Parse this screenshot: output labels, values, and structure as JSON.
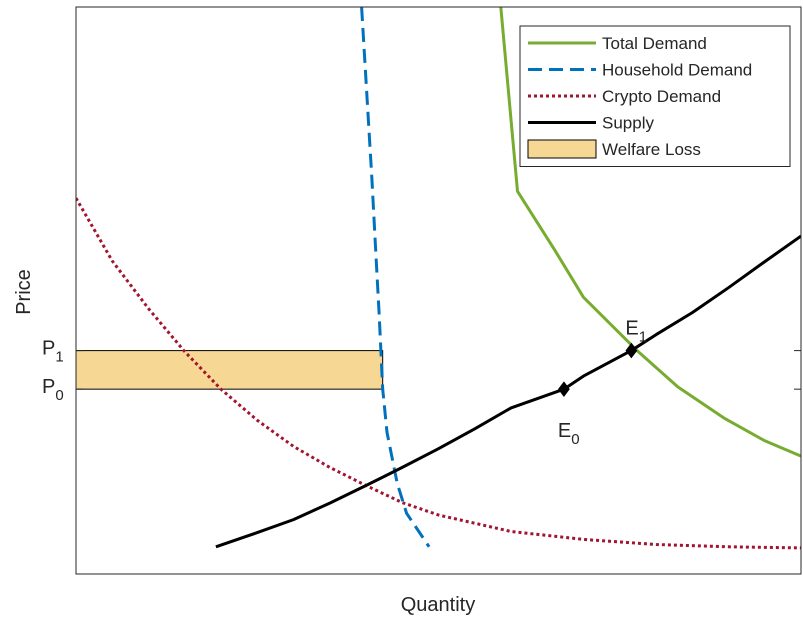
{
  "chart_data": {
    "type": "line",
    "title": "",
    "xlabel": "Quantity",
    "ylabel": "Price",
    "xlim": [
      0,
      100
    ],
    "ylim": [
      0,
      100
    ],
    "xticks": [],
    "yticks": [
      {
        "value": 32.6,
        "main": "P",
        "sub": "0"
      },
      {
        "value": 39.4,
        "main": "P",
        "sub": "1"
      }
    ],
    "grid": false,
    "legend": {
      "position": "top-right"
    },
    "series": [
      {
        "name": "Total Demand",
        "color": "#77AC30",
        "style": "solid",
        "points": [
          [
            58.6,
            100
          ],
          [
            60.9,
            67.5
          ],
          [
            66,
            57.2
          ],
          [
            70,
            48.8
          ],
          [
            77.4,
            39.4
          ],
          [
            83,
            33
          ],
          [
            89.5,
            27.4
          ],
          [
            95,
            23.5
          ],
          [
            100,
            20.8
          ]
        ]
      },
      {
        "name": "Household Demand",
        "color": "#0072BD",
        "style": "dashed",
        "points": [
          [
            39.4,
            100
          ],
          [
            40.1,
            85
          ],
          [
            40.8,
            70
          ],
          [
            41.3,
            58
          ],
          [
            41.8,
            46
          ],
          [
            42.3,
            32.6
          ],
          [
            42.9,
            25
          ],
          [
            44.3,
            16
          ],
          [
            45.6,
            10.7
          ],
          [
            48.7,
            4.8
          ]
        ]
      },
      {
        "name": "Crypto Demand",
        "color": "#A2142F",
        "style": "dotted",
        "points": [
          [
            0,
            66.3
          ],
          [
            5,
            55.2
          ],
          [
            10,
            46.8
          ],
          [
            15,
            39.2
          ],
          [
            20,
            32.6
          ],
          [
            25,
            27.1
          ],
          [
            30,
            22.5
          ],
          [
            35,
            18.8
          ],
          [
            40,
            15.6
          ],
          [
            45,
            12.6
          ],
          [
            50,
            10.4
          ],
          [
            60,
            7.5
          ],
          [
            70,
            6.1
          ],
          [
            80,
            5.2
          ],
          [
            90,
            4.8
          ],
          [
            100,
            4.6
          ]
        ]
      },
      {
        "name": "Supply",
        "color": "#000000",
        "style": "solid",
        "points": [
          [
            19.3,
            4.8
          ],
          [
            25,
            7.3
          ],
          [
            30,
            9.6
          ],
          [
            35,
            12.5
          ],
          [
            40,
            15.6
          ],
          [
            45,
            18.8
          ],
          [
            50,
            22.1
          ],
          [
            55,
            25.6
          ],
          [
            60,
            29.3
          ],
          [
            67.3,
            32.6
          ],
          [
            70,
            34.9
          ],
          [
            76.6,
            39.4
          ],
          [
            80,
            42.2
          ],
          [
            85,
            46.1
          ],
          [
            90,
            50.5
          ],
          [
            95,
            55.1
          ],
          [
            100,
            59.6
          ]
        ]
      }
    ],
    "welfare_loss": {
      "name": "Welfare Loss",
      "color": "#F7D794",
      "x": [
        0,
        42.3
      ],
      "y": [
        32.6,
        39.4
      ]
    },
    "equilibria": [
      {
        "main": "E",
        "sub": "0",
        "x": 67.3,
        "y": 32.6,
        "label_side": "below"
      },
      {
        "main": "E",
        "sub": "1",
        "x": 76.6,
        "y": 39.4,
        "label_side": "above"
      }
    ]
  }
}
